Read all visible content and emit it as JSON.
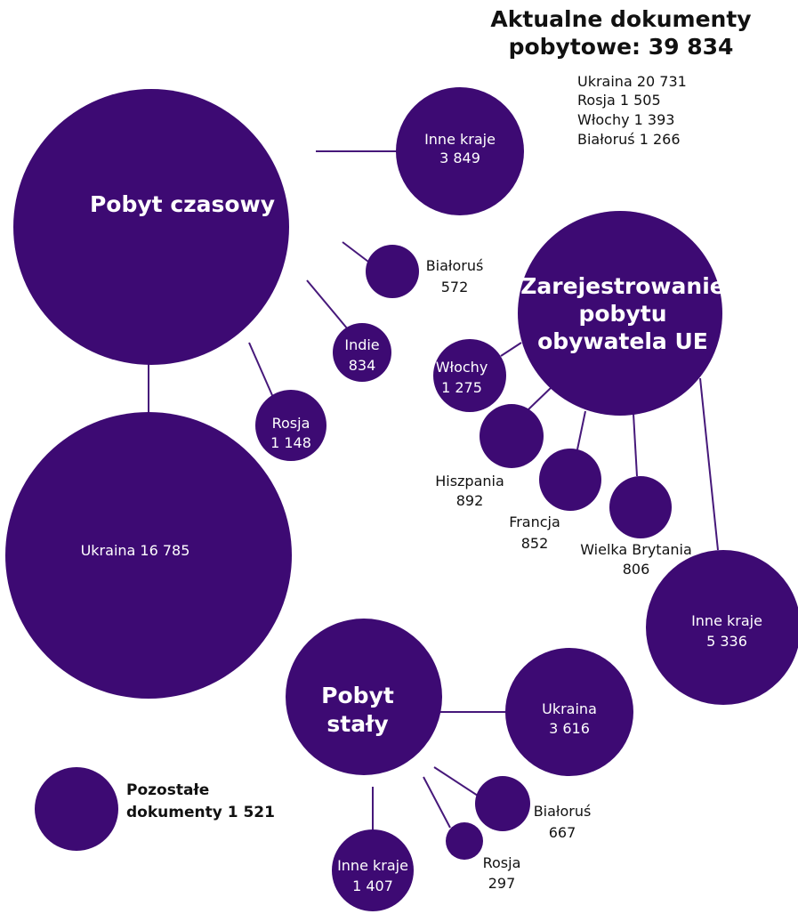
{
  "title": {
    "line1": "Aktualne dokumenty",
    "line2": "pobytowe: 39 834",
    "countries": [
      "Ukraina 20 731",
      "Rosja 1 505",
      "Włochy 1 393",
      "Białoruś 1 266"
    ]
  },
  "colors": {
    "bubble": "#3d0a73",
    "connector": "#46187a"
  },
  "groups": {
    "pobyt_czasowy": {
      "label": "Pobyt czasowy",
      "ukraina": "Ukraina 16 785",
      "inne_kraje": {
        "name": "Inne kraje",
        "value": "3 849"
      },
      "bialorus": {
        "name": "Białoruś",
        "value": "572"
      },
      "indie": {
        "name": "Indie",
        "value": "834"
      },
      "rosja": {
        "name": "Rosja",
        "value": "1 148"
      }
    },
    "ue": {
      "label_line1": "Zarejestrowanie",
      "label_line2": "pobytu",
      "label_line3": "obywatela UE",
      "wlochy": {
        "name": "Włochy",
        "value": "1 275"
      },
      "hiszpania": {
        "name": "Hiszpania",
        "value": "892"
      },
      "francja": {
        "name": "Francja",
        "value": "852"
      },
      "wielka_brytania": {
        "name": "Wielka Brytania",
        "value": "806"
      },
      "inne_kraje": {
        "name": "Inne kraje",
        "value": "5 336"
      }
    },
    "pobyt_staly": {
      "label_line1": "Pobyt",
      "label_line2": "stały",
      "ukraina": {
        "name": "Ukraina",
        "value": "3 616"
      },
      "bialorus": {
        "name": "Białoruś",
        "value": "667"
      },
      "rosja": {
        "name": "Rosja",
        "value": "297"
      },
      "inne_kraje": {
        "name": "Inne kraje",
        "value": "1 407"
      }
    },
    "pozostale": {
      "line1": "Pozostałe",
      "line2": "dokumenty 1 521"
    }
  }
}
